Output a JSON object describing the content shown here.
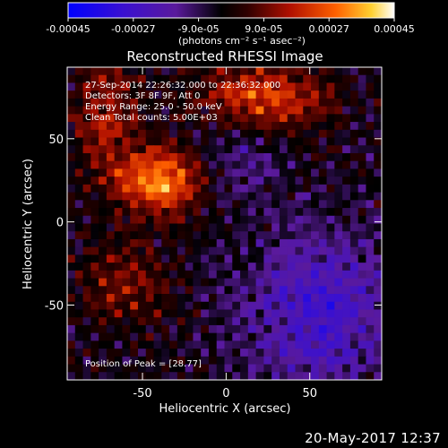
{
  "chart_data": {
    "type": "heatmap",
    "title": "Reconstructed RHESSI Image",
    "xlabel": "Heliocentric X (arcsec)",
    "ylabel": "Heliocentric Y (arcsec)",
    "xlim": [
      -95,
      93
    ],
    "ylim": [
      -95,
      93
    ],
    "x_ticks": [
      -50,
      0,
      50
    ],
    "y_ticks": [
      -50,
      0,
      50
    ],
    "colorbar": {
      "ticks": [
        "-0.00045",
        "-0.00027",
        "-9.0e-05",
        "9.0e-05",
        "0.00027",
        "0.00045"
      ],
      "range": [
        -0.00045,
        0.00045
      ],
      "units": "(photons cm⁻² s⁻¹ asec⁻²)",
      "colormap": [
        "#0000ff",
        "#5a1a9c",
        "#000000",
        "#b01000",
        "#ff6000",
        "#ffe040",
        "#ffffff"
      ]
    },
    "annotations": [
      "27-Sep-2014 22:26:32.000 to 22:36:32.000",
      "Detectors: 3F 8F 9F, Att 0",
      "Energy Range: 25.0 - 50.0 keV",
      "Clean    Total counts: 5.00E+03"
    ],
    "peak_label": "Position of Peak = [28.77]"
  },
  "footer": {
    "date": "20-May-2017 12:37"
  }
}
